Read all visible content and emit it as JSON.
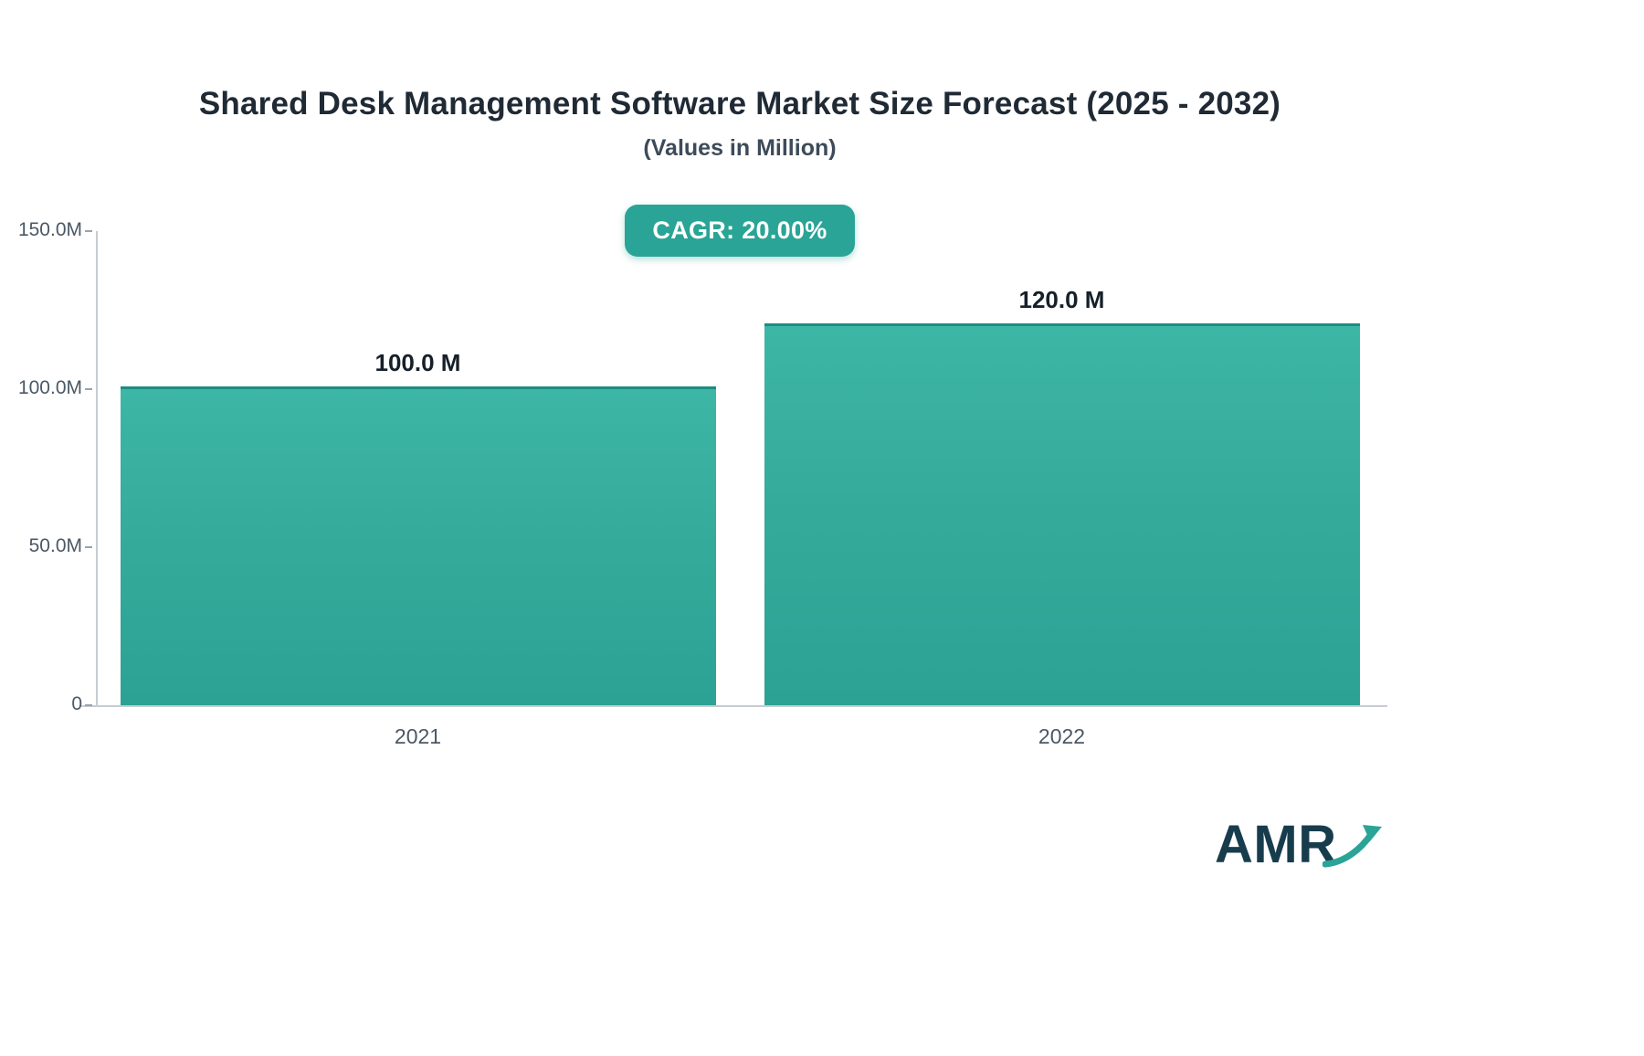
{
  "title": "Shared Desk Management Software Market Size Forecast (2025 - 2032)",
  "subtitle": "(Values in Million)",
  "badge": {
    "label": "CAGR: 20.00%"
  },
  "logo": {
    "text": "AMR"
  },
  "colors": {
    "bar_top": "#3db6a6",
    "bar_bottom": "#2ba294",
    "badge_bg": "#2aa496",
    "logo_text": "#173d4d",
    "logo_arrow": "#2aa496",
    "axis": "#c6ccd2"
  },
  "chart_data": {
    "type": "bar",
    "title": "Shared Desk Management Software Market Size Forecast (2025 - 2032)",
    "subtitle": "(Values in Million)",
    "categories": [
      "2021",
      "2022"
    ],
    "values": [
      100.0,
      120.0
    ],
    "value_labels": [
      "100.0 M",
      "120.0 M"
    ],
    "xlabel": "",
    "ylabel": "",
    "ylim": [
      0,
      150
    ],
    "yticks": [
      0,
      50,
      100,
      150
    ],
    "ytick_labels": [
      "0",
      "50.0M",
      "100.0M",
      "150.0M"
    ],
    "grid": false,
    "legend": false,
    "annotations": [
      "CAGR: 20.00%"
    ]
  }
}
